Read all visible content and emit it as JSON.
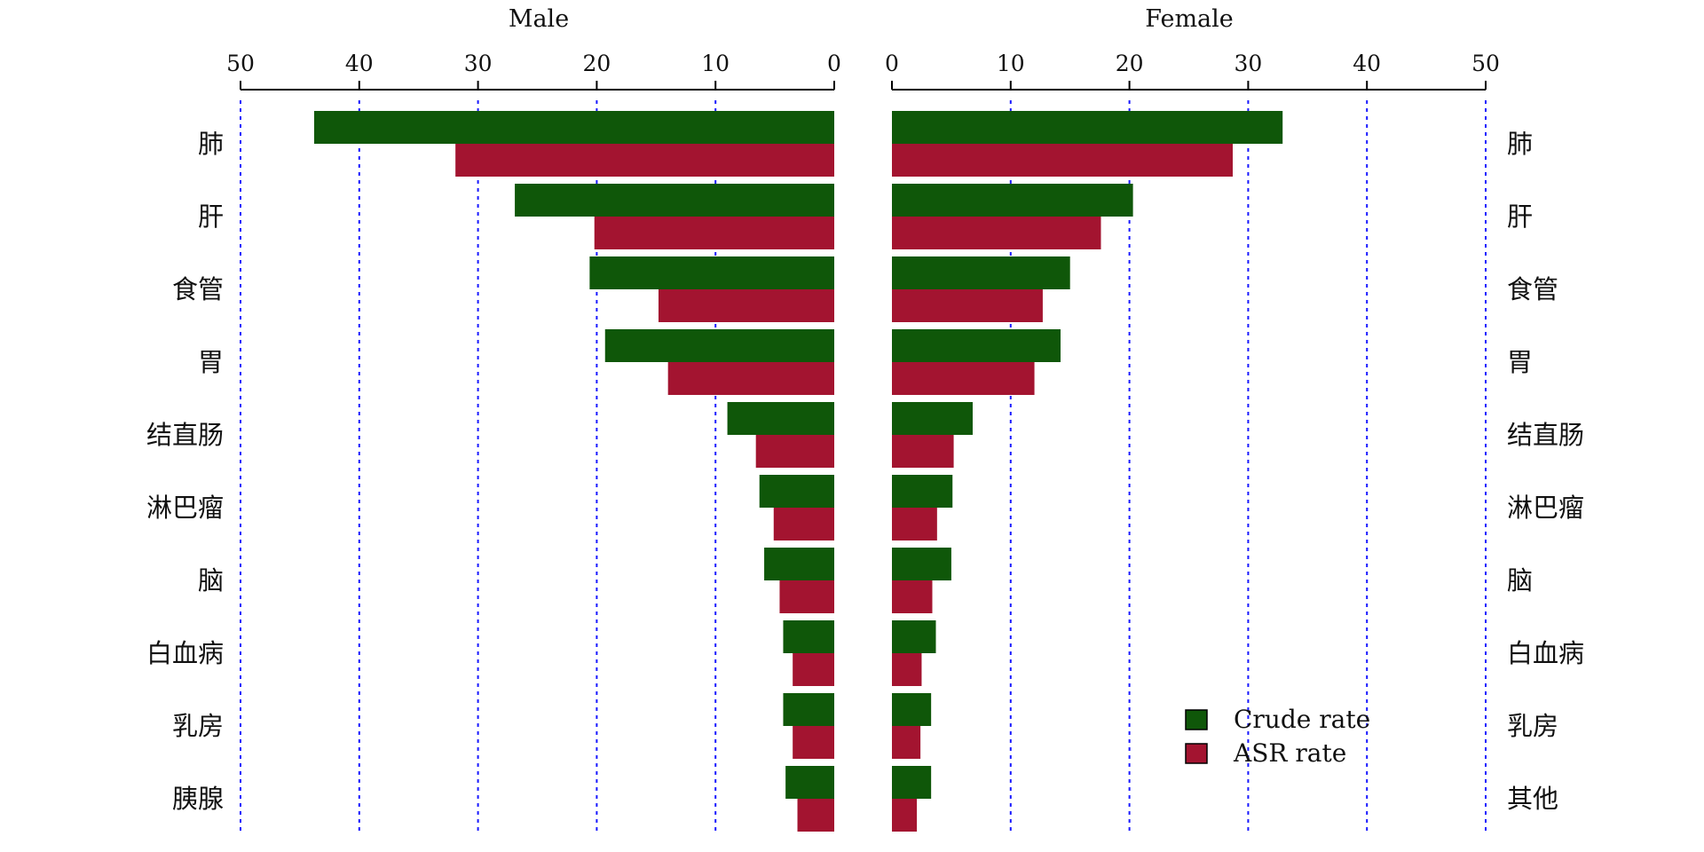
{
  "chart_data": {
    "type": "bar",
    "panels": [
      {
        "title": "Male",
        "direction": "reversed",
        "xlim": [
          0,
          50
        ],
        "ticks": [
          "50",
          "40",
          "30",
          "20",
          "10",
          "0"
        ],
        "categories": [
          "肺",
          "肝",
          "食管",
          "胃",
          "结直肠",
          "淋巴瘤",
          "脑",
          "白血病",
          "乳房",
          "胰腺"
        ],
        "series": [
          {
            "name": "Crude rate",
            "values": [
              43.8,
              26.9,
              20.6,
              19.3,
              9.0,
              6.3,
              5.9,
              4.3,
              4.3,
              4.1
            ]
          },
          {
            "name": "ASR rate",
            "values": [
              31.9,
              20.2,
              14.8,
              14.0,
              6.6,
              5.1,
              4.6,
              3.5,
              3.5,
              3.1
            ]
          }
        ]
      },
      {
        "title": "Female",
        "direction": "normal",
        "xlim": [
          0,
          50
        ],
        "ticks": [
          "0",
          "10",
          "20",
          "30",
          "40",
          "50"
        ],
        "categories": [
          "肺",
          "肝",
          "食管",
          "胃",
          "结直肠",
          "淋巴瘤",
          "脑",
          "白血病",
          "乳房",
          "其他"
        ],
        "series": [
          {
            "name": "Crude rate",
            "values": [
              32.9,
              20.3,
              15.0,
              14.2,
              6.8,
              5.1,
              5.0,
              3.7,
              3.3,
              3.3
            ]
          },
          {
            "name": "ASR rate",
            "values": [
              28.7,
              17.6,
              12.7,
              12.0,
              5.2,
              3.8,
              3.4,
              2.5,
              2.4,
              2.1
            ]
          }
        ]
      }
    ],
    "grid": "vertical dashed",
    "legend": {
      "placement": "lower-right of female panel",
      "entries": [
        {
          "label": "Crude rate",
          "color": "#0f5709"
        },
        {
          "label": "ASR rate",
          "color": "#a31430"
        }
      ]
    },
    "colors": {
      "crude": "#0f5709",
      "asr": "#a31430",
      "grid": "#1a1aff"
    }
  }
}
